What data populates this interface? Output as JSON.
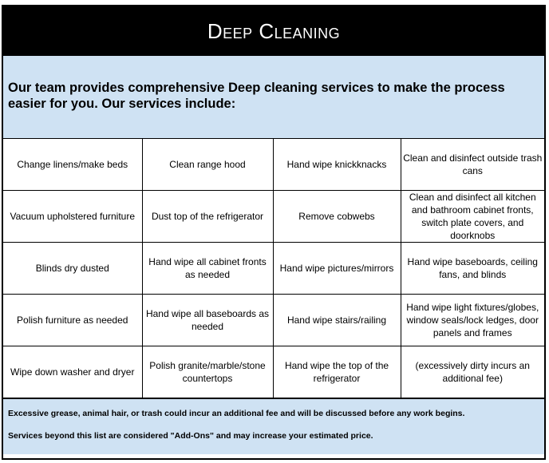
{
  "header": {
    "title": "Deep Cleaning"
  },
  "intro": {
    "text": "Our team provides comprehensive Deep cleaning services to make the process easier for you. Our services include:"
  },
  "services": {
    "rows": [
      [
        "Change linens/make beds",
        "Clean range hood",
        "Hand wipe knickknacks",
        "Clean and disinfect outside trash cans"
      ],
      [
        "Vacuum upholstered furniture",
        "Dust top of the refrigerator",
        "Remove cobwebs",
        "Clean and disinfect all kitchen and bathroom cabinet fronts, switch plate covers, and doorknobs"
      ],
      [
        "Blinds dry dusted",
        "Hand wipe all cabinet fronts as needed",
        "Hand wipe pictures/mirrors",
        "Hand wipe baseboards, ceiling fans, and blinds"
      ],
      [
        "Polish furniture as needed",
        "Hand wipe all baseboards as needed",
        "Hand wipe stairs/railing",
        "Hand wipe light fixtures/globes, window seals/lock ledges, door panels and frames"
      ],
      [
        "Wipe down washer and dryer",
        "Polish granite/marble/stone countertops",
        "Hand wipe the top of the refrigerator",
        "(excessively dirty incurs an additional fee)"
      ]
    ]
  },
  "footer": {
    "note1": "Excessive grease, animal hair, or trash could incur an additional fee and will be discussed before any work begins.",
    "note2": "Services beyond this list are considered  \"Add-Ons\" and may increase your estimated price."
  },
  "colors": {
    "header_bg": "#000000",
    "panel_bg": "#cfe2f3"
  }
}
